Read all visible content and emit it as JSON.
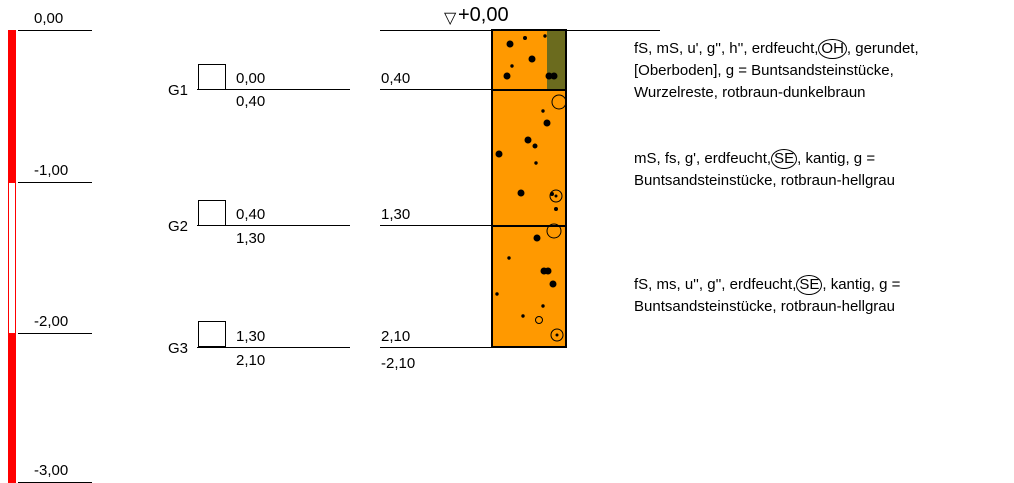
{
  "scale": {
    "labels": [
      "0,00",
      "-1,00",
      "-2,00",
      "-3,00"
    ]
  },
  "samples": [
    {
      "id": "G1",
      "top": "0,00",
      "bottom": "0,40"
    },
    {
      "id": "G2",
      "top": "0,40",
      "bottom": "1,30"
    },
    {
      "id": "G3",
      "top": "1,30",
      "bottom": "2,10"
    }
  ],
  "column": {
    "surface_label": "+0,00",
    "surface_symbol": "▽",
    "depth_labels": [
      "0,40",
      "1,30",
      "2,10"
    ],
    "final_depth": "-2,10",
    "colors": {
      "soil": "#FF9900",
      "topsoil_strip": "#6B6B1E",
      "scale_red": "#FF0000"
    }
  },
  "layers": [
    {
      "pre": "fS, mS, u', g'', h'', erdfeucht,",
      "code": "OH",
      "post": ", gerundet,",
      "line2": "[Oberboden], g = Buntsandsteinstücke,",
      "line3": "Wurzelreste, rotbraun-dunkelbraun"
    },
    {
      "pre": "mS, fs, g', erdfeucht,",
      "code": "SE",
      "post": ", kantig, g =",
      "line2": "Buntsandsteinstücke, rotbraun-hellgrau"
    },
    {
      "pre": "fS, ms, u'', g'', erdfeucht,",
      "code": "SE",
      "post": ", kantig, g =",
      "line2": "Buntsandsteinstücke, rotbraun-hellgrau"
    }
  ]
}
